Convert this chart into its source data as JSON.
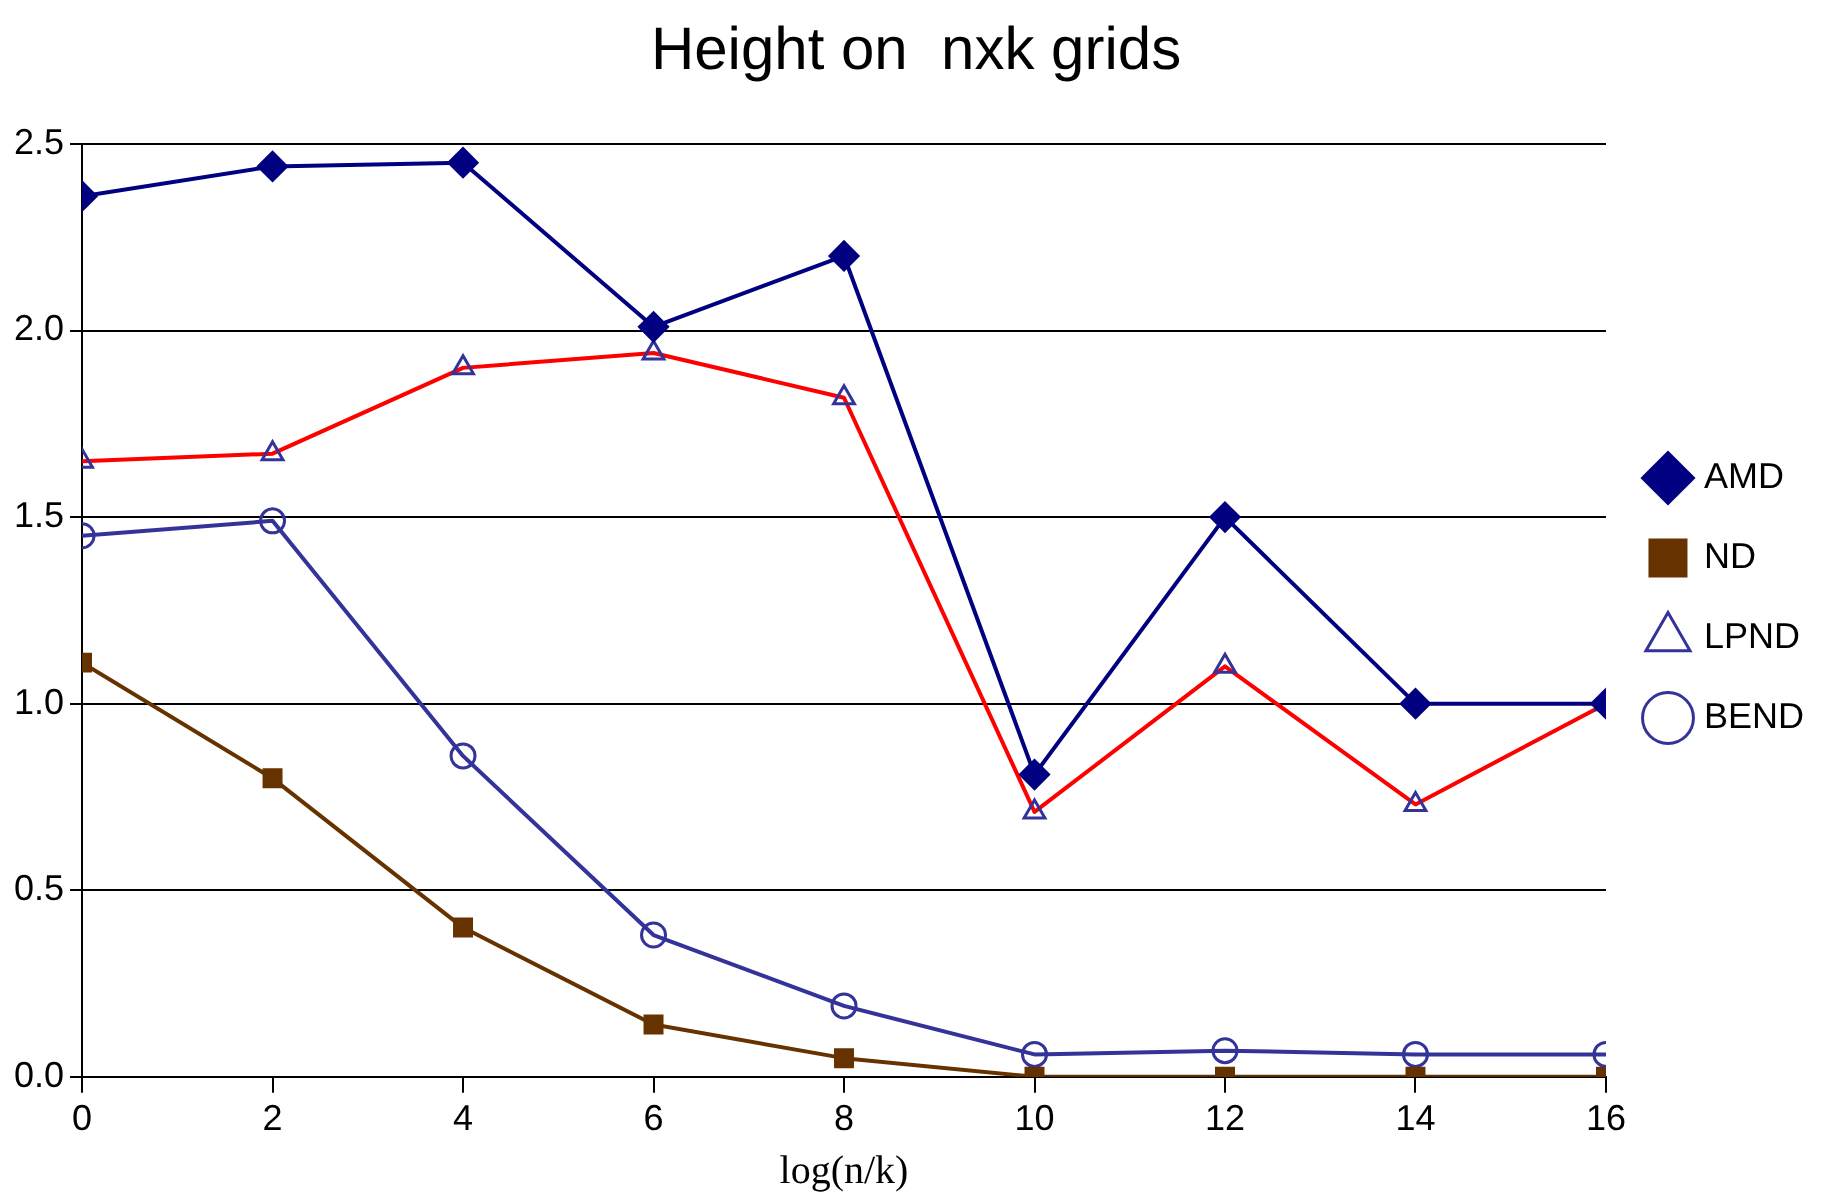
{
  "chart_data": {
    "type": "line",
    "title": "Height on  nxk grids",
    "xlabel": "log(n/k)",
    "x": [
      0,
      2,
      4,
      6,
      8,
      10,
      12,
      14,
      16
    ],
    "series": [
      {
        "name": "AMD",
        "color": "#000080",
        "marker": "diamond",
        "values": [
          2.36,
          2.44,
          2.45,
          2.01,
          2.2,
          0.81,
          1.5,
          1.0,
          1.0
        ]
      },
      {
        "name": "ND",
        "color": "#663300",
        "marker": "square",
        "values": [
          1.11,
          0.8,
          0.4,
          0.14,
          0.05,
          0.0,
          0.0,
          0.0,
          0.0
        ]
      },
      {
        "name": "LPND",
        "color": "#ff0000",
        "marker": "triangle",
        "values": [
          1.65,
          1.67,
          1.9,
          1.94,
          1.82,
          0.71,
          1.1,
          0.73,
          1.0
        ]
      },
      {
        "name": "BEND",
        "color": "#333399",
        "marker": "circle",
        "values": [
          1.45,
          1.49,
          0.86,
          0.38,
          0.19,
          0.06,
          0.07,
          0.06,
          0.06
        ]
      }
    ],
    "xlim": [
      0,
      16
    ],
    "xticks": [
      0,
      2,
      4,
      6,
      8,
      10,
      12,
      14,
      16
    ],
    "ylim": [
      0,
      2.5
    ],
    "yticks": [
      {
        "value": 0,
        "label": "0.0"
      },
      0.5,
      {
        "value": 1,
        "label": "1.0"
      },
      1.5,
      {
        "value": 2,
        "label": "2.0"
      },
      2.5
    ],
    "grid": "y",
    "legend": "right",
    "line_style": "solid"
  }
}
